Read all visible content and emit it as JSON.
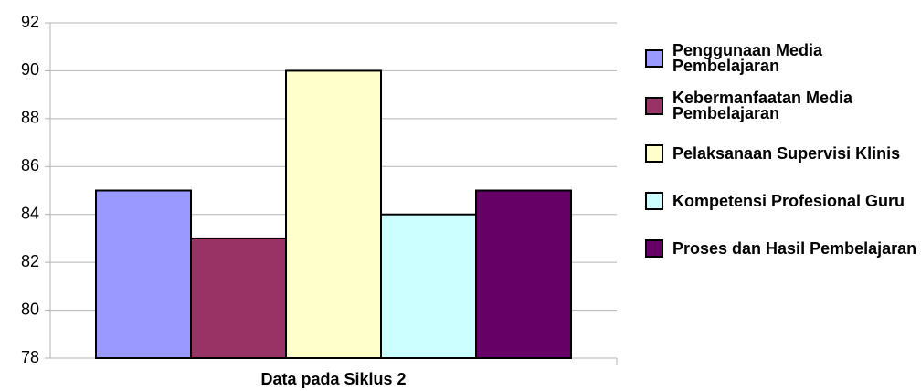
{
  "chart_data": {
    "type": "bar",
    "categories": [
      "Data pada Siklus 2"
    ],
    "series": [
      {
        "name": "Penggunaan Media Pembelajaran",
        "color": "#9999ff",
        "values": [
          85
        ]
      },
      {
        "name": "Kebermanfaatan Media Pembelajaran",
        "color": "#993366",
        "values": [
          83
        ]
      },
      {
        "name": "Pelaksanaan Supervisi Klinis",
        "color": "#ffffcc",
        "values": [
          90
        ]
      },
      {
        "name": "Kompetensi Profesional Guru",
        "color": "#ccffff",
        "values": [
          84
        ]
      },
      {
        "name": "Proses dan Hasil Pembelajaran",
        "color": "#660066",
        "values": [
          85
        ]
      }
    ],
    "ylim": [
      78,
      92
    ],
    "yticks": [
      78,
      80,
      82,
      84,
      86,
      88,
      90,
      92
    ],
    "grid": true,
    "legend": "right"
  }
}
